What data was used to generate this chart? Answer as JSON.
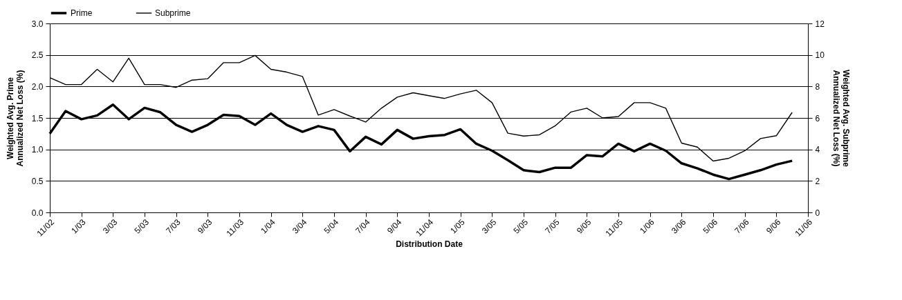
{
  "chart_data": {
    "type": "line",
    "xlabel": "Distribution Date",
    "ylabel": "Weighted Avg. Prime\nAnnualized Net Loss  (%)",
    "y2label": "Weighted Avg. Subprime\nAnnualized Net Loss  (%)",
    "categories": [
      "11/02",
      null,
      "1/03",
      null,
      "3/03",
      null,
      "5/03",
      null,
      "7/03",
      null,
      "9/03",
      null,
      "11/03",
      null,
      "1/04",
      null,
      "3/04",
      null,
      "5/04",
      null,
      "7/04",
      null,
      "9/04",
      null,
      "11/04",
      null,
      "1/05",
      null,
      "3/05",
      null,
      "5/05",
      null,
      "7/05",
      null,
      "9/05",
      null,
      "11/05",
      null,
      "1/06",
      null,
      "3/06",
      null,
      "5/06",
      null,
      "7/06",
      null,
      "9/06",
      null,
      "11/06"
    ],
    "series": [
      {
        "name": "Prime",
        "color": "#000000",
        "values": [
          1.25,
          1.61,
          1.48,
          1.54,
          1.71,
          1.48,
          1.66,
          1.59,
          1.39,
          1.28,
          1.39,
          1.55,
          1.53,
          1.39,
          1.57,
          1.39,
          1.28,
          1.37,
          1.31,
          0.97,
          1.2,
          1.08,
          1.31,
          1.17,
          1.21,
          1.23,
          1.32,
          1.09,
          0.98,
          0.83,
          0.67,
          0.64,
          0.71,
          0.71,
          0.91,
          0.89,
          1.09,
          0.97,
          1.09,
          0.98,
          0.78,
          0.7,
          0.6,
          0.53,
          0.6,
          0.67,
          0.76,
          0.82,
          null
        ]
      },
      {
        "name": "Subprime",
        "color": "#000000",
        "axis": "y2",
        "values": [
          8.56,
          8.12,
          8.12,
          9.09,
          8.29,
          9.79,
          8.12,
          8.12,
          7.94,
          8.4,
          8.49,
          9.51,
          9.51,
          9.97,
          9.09,
          8.91,
          8.63,
          6.18,
          6.53,
          6.12,
          5.74,
          6.62,
          7.32,
          7.6,
          7.41,
          7.24,
          7.53,
          7.76,
          6.97,
          5.03,
          4.85,
          4.93,
          5.5,
          6.38,
          6.62,
          6.0,
          6.09,
          6.97,
          6.97,
          6.62,
          4.4,
          4.15,
          3.26,
          3.44,
          3.91,
          4.69,
          4.87,
          6.35,
          null
        ]
      }
    ],
    "ylim": [
      0,
      3.0
    ],
    "yticks": [
      {
        "value": 0,
        "label": "0.0"
      },
      {
        "value": 0.5,
        "label": "0.5"
      },
      {
        "value": 1,
        "label": "1.0"
      },
      {
        "value": 1.5,
        "label": "1.5"
      },
      {
        "value": 2,
        "label": "2.0"
      },
      {
        "value": 2.5,
        "label": "2.5"
      },
      {
        "value": 3,
        "label": "3.0"
      }
    ],
    "y2lim": [
      0,
      12
    ],
    "y2ticks": [
      0,
      2,
      4,
      6,
      8,
      10,
      12
    ],
    "grid": "y",
    "legend": "top",
    "marker": "none",
    "line_style": "solid"
  }
}
